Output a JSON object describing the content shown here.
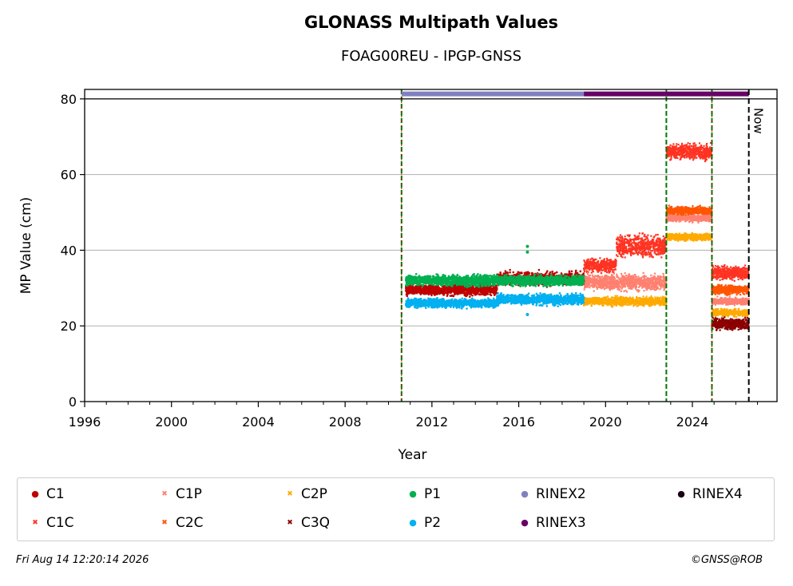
{
  "chart_data": {
    "type": "scatter",
    "title": "GLONASS Multipath Values",
    "subtitle": "FOAG00REU - IPGP-GNSS",
    "xlabel": "Year",
    "ylabel": "MP Value (cm)",
    "xlim": [
      1996,
      2027.9
    ],
    "ylim": [
      0,
      82.5
    ],
    "xticks": [
      1996,
      2000,
      2004,
      2008,
      2012,
      2016,
      2020,
      2024
    ],
    "yticks": [
      0,
      20,
      40,
      60,
      80
    ],
    "grid": "horizontal",
    "now_label": "Now",
    "now_x": 2026.6,
    "event_lines": [
      2010.6,
      2022.8,
      2024.9
    ],
    "rinex_bars": [
      {
        "name": "RINEX2",
        "start": 2010.6,
        "end": 2019.0,
        "y": 81.3,
        "color": "#8080c0"
      },
      {
        "name": "RINEX3",
        "start": 2019.0,
        "end": 2026.6,
        "y": 81.3,
        "color": "#660066"
      }
    ],
    "series": [
      {
        "name": "C1",
        "marker": "dot",
        "color": "#c00000",
        "segments": [
          {
            "start": 2010.8,
            "end": 2015.0,
            "mean": 29.5,
            "spread": 1.2
          },
          {
            "start": 2015.0,
            "end": 2019.0,
            "mean": 32.5,
            "spread": 1.5
          }
        ]
      },
      {
        "name": "C1C",
        "marker": "x",
        "color": "#ff3322",
        "segments": [
          {
            "start": 2019.0,
            "end": 2020.5,
            "mean": 36.0,
            "spread": 1.5
          },
          {
            "start": 2020.5,
            "end": 2022.8,
            "mean": 41.0,
            "spread": 2.5
          },
          {
            "start": 2022.8,
            "end": 2024.9,
            "mean": 66.0,
            "spread": 1.8
          },
          {
            "start": 2024.9,
            "end": 2026.6,
            "mean": 34.0,
            "spread": 1.5
          }
        ]
      },
      {
        "name": "C1P",
        "marker": "x",
        "color": "#ff8070",
        "segments": [
          {
            "start": 2019.0,
            "end": 2022.8,
            "mean": 31.5,
            "spread": 1.8
          },
          {
            "start": 2022.8,
            "end": 2024.9,
            "mean": 48.5,
            "spread": 0.8
          },
          {
            "start": 2024.9,
            "end": 2026.6,
            "mean": 26.5,
            "spread": 0.8
          }
        ]
      },
      {
        "name": "C2C",
        "marker": "x",
        "color": "#ff5500",
        "segments": [
          {
            "start": 2022.8,
            "end": 2024.9,
            "mean": 50.5,
            "spread": 0.9
          },
          {
            "start": 2024.9,
            "end": 2026.6,
            "mean": 29.5,
            "spread": 1.0
          }
        ]
      },
      {
        "name": "C2P",
        "marker": "x",
        "color": "#ffaa00",
        "segments": [
          {
            "start": 2019.0,
            "end": 2022.8,
            "mean": 26.5,
            "spread": 1.0
          },
          {
            "start": 2022.8,
            "end": 2024.9,
            "mean": 43.5,
            "spread": 0.8
          },
          {
            "start": 2024.9,
            "end": 2026.6,
            "mean": 23.5,
            "spread": 0.8
          }
        ]
      },
      {
        "name": "C3Q",
        "marker": "x",
        "color": "#8b0000",
        "segments": [
          {
            "start": 2024.9,
            "end": 2026.6,
            "mean": 20.5,
            "spread": 1.3
          }
        ]
      },
      {
        "name": "P1",
        "marker": "dot",
        "color": "#00b050",
        "segments": [
          {
            "start": 2010.8,
            "end": 2019.0,
            "mean": 32.0,
            "spread": 1.2
          }
        ],
        "outliers": [
          [
            2016.4,
            41.0
          ],
          [
            2016.4,
            39.5
          ]
        ]
      },
      {
        "name": "P2",
        "marker": "dot",
        "color": "#00b0f0",
        "segments": [
          {
            "start": 2010.8,
            "end": 2015.0,
            "mean": 26.0,
            "spread": 1.0
          },
          {
            "start": 2015.0,
            "end": 2019.0,
            "mean": 27.0,
            "spread": 1.2
          }
        ],
        "outliers": [
          [
            2016.4,
            23.0
          ]
        ]
      }
    ],
    "legend": [
      {
        "label": "C1",
        "marker": "●",
        "color": "#c00000"
      },
      {
        "label": "C1P",
        "marker": "✖",
        "color": "#ff8070"
      },
      {
        "label": "C2P",
        "marker": "✖",
        "color": "#ffaa00"
      },
      {
        "label": "P1",
        "marker": "●",
        "color": "#00b050"
      },
      {
        "label": "RINEX2",
        "marker": "●",
        "color": "#8080c0"
      },
      {
        "label": "RINEX4",
        "marker": "●",
        "color": "#1a0014"
      },
      {
        "label": "C1C",
        "marker": "✖",
        "color": "#ff3322"
      },
      {
        "label": "C2C",
        "marker": "✖",
        "color": "#ff5500"
      },
      {
        "label": "C3Q",
        "marker": "✖",
        "color": "#8b0000"
      },
      {
        "label": "P2",
        "marker": "●",
        "color": "#00b0f0"
      },
      {
        "label": "RINEX3",
        "marker": "●",
        "color": "#660066"
      }
    ]
  },
  "footer": {
    "timestamp": "Fri Aug 14 12:20:14 2026",
    "credit": "©GNSS@ROB"
  }
}
